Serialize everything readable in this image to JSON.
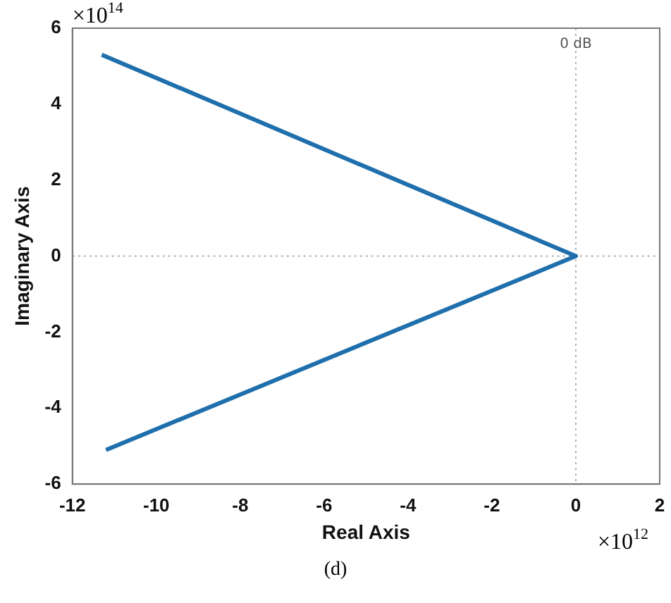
{
  "chart_data": {
    "type": "line",
    "xlabel": "Real Axis",
    "ylabel": "Imaginary Axis",
    "series": [
      {
        "color": "#1f6fad",
        "x": [
          -11.3,
          0,
          -11.2
        ],
        "values": [
          5.3,
          0,
          -5.1
        ]
      }
    ],
    "xlim": [
      -12,
      2
    ],
    "xticks": [
      -12,
      -10,
      -8,
      -6,
      -4,
      -2,
      0,
      2
    ],
    "ylim": [
      -6,
      6
    ],
    "yticks": [
      -6,
      -4,
      -2,
      0,
      2,
      4,
      6
    ],
    "ref_lines": [
      {
        "axis": "x",
        "value": 0,
        "label": "0 dB",
        "color": "#b0b0b0",
        "line_style": "dotted"
      },
      {
        "axis": "y",
        "value": 0,
        "color": "#b0b0b0",
        "line_style": "dotted"
      }
    ],
    "grid": false,
    "legend": false,
    "marker": "none",
    "line_style": "solid",
    "annotations": [
      "×10$^{14}$",
      "×10$^{12}$",
      "(d)"
    ]
  }
}
